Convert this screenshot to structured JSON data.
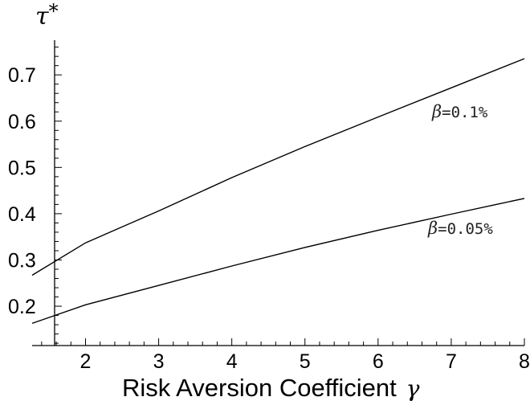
{
  "chart_data": {
    "type": "line",
    "title": "",
    "xlabel": "Risk Aversion Coefficient",
    "xlabel_symbol": "γ",
    "ylabel": "τ",
    "ylabel_superscript": "*",
    "xlim": [
      1.27,
      8.0
    ],
    "ylim": [
      0.115,
      0.775
    ],
    "x_ticks": [
      "2",
      "3",
      "4",
      "5",
      "6",
      "7",
      "8"
    ],
    "y_ticks": [
      "0.2",
      "0.3",
      "0.4",
      "0.5",
      "0.6",
      "0.7"
    ],
    "grid": false,
    "series": [
      {
        "name": "β=0.1%",
        "label_symbol": "β",
        "label_value": "=0.1%",
        "color": "#000000",
        "x": [
          1.27,
          2.0,
          3.0,
          4.0,
          5.0,
          6.0,
          7.0,
          8.0
        ],
        "y": [
          0.267,
          0.337,
          0.406,
          0.478,
          0.545,
          0.609,
          0.672,
          0.735
        ]
      },
      {
        "name": "β=0.05%",
        "label_symbol": "β",
        "label_value": "=0.05%",
        "color": "#000000",
        "x": [
          1.27,
          2.0,
          3.0,
          4.0,
          5.0,
          6.0,
          7.0,
          8.0
        ],
        "y": [
          0.163,
          0.203,
          0.245,
          0.287,
          0.327,
          0.364,
          0.399,
          0.433
        ]
      }
    ]
  }
}
